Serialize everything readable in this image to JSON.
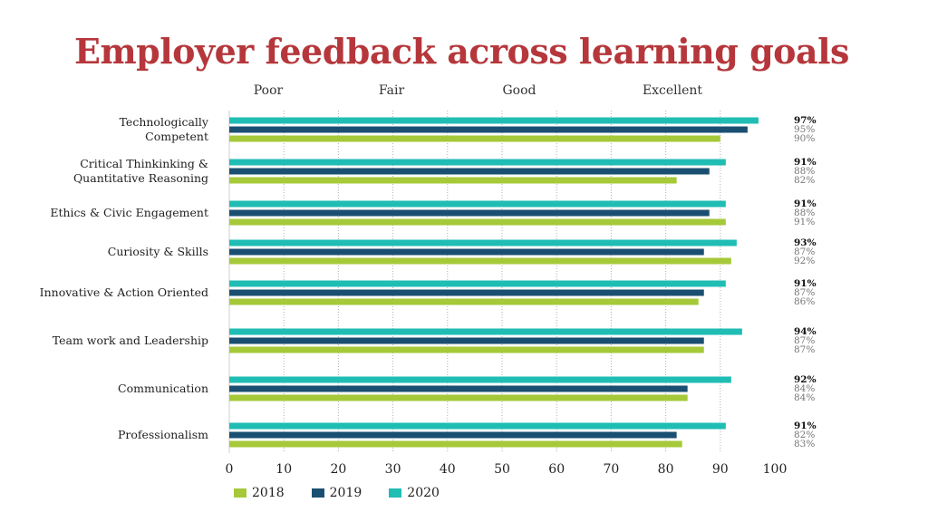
{
  "title": "Employer feedback across learning goals",
  "rating_labels": [
    "Poor",
    "Fair",
    "Good",
    "Excellent"
  ],
  "colors": {
    "2018": "#a6c93a",
    "2019": "#1b4f72",
    "2020": "#1fbdb4"
  },
  "chart_data": {
    "type": "bar",
    "orientation": "horizontal",
    "title": "Employer feedback across learning goals",
    "categories": [
      "Technologically Competent",
      "Critical Thinkinking & Quantitative Reasoning",
      "Ethics & Civic Engagement",
      "Curiosity & Skills",
      "Innovative & Action Oriented",
      "Team work and Leadership",
      "Communication",
      "Professionalism"
    ],
    "category_lines": [
      [
        "Technologically",
        "Competent"
      ],
      [
        "Critical Thinkinking &",
        "Quantitative Reasoning"
      ],
      [
        "Ethics & Civic Engagement"
      ],
      [
        "Curiosity & Skills"
      ],
      [
        "Innovative & Action Oriented"
      ],
      [
        "Team work and Leadership"
      ],
      [
        "Communication"
      ],
      [
        "Professionalism"
      ]
    ],
    "series": [
      {
        "name": "2020",
        "values": [
          97,
          91,
          91,
          93,
          91,
          94,
          92,
          91
        ]
      },
      {
        "name": "2019",
        "values": [
          95,
          88,
          88,
          87,
          87,
          87,
          84,
          82
        ]
      },
      {
        "name": "2018",
        "values": [
          90,
          82,
          91,
          92,
          86,
          87,
          84,
          83
        ]
      }
    ],
    "value_labels": {
      "2020": [
        "97%",
        "91%",
        "91%",
        "93%",
        "91%",
        "94%",
        "92%",
        "91%"
      ],
      "2019": [
        "95%",
        "88%",
        "88%",
        "87%",
        "87%",
        "87%",
        "84%",
        "82%"
      ],
      "2018": [
        "90%",
        "82%",
        "91%",
        "92%",
        "86%",
        "87%",
        "84%",
        "83%"
      ]
    },
    "xlim": [
      0,
      100
    ],
    "xticks": [
      0,
      10,
      20,
      30,
      40,
      50,
      60,
      70,
      80,
      90,
      100
    ],
    "xlabel": "",
    "ylabel": "",
    "grid": true,
    "legend": {
      "position": "bottom",
      "entries": [
        "2018",
        "2019",
        "2020"
      ]
    }
  }
}
